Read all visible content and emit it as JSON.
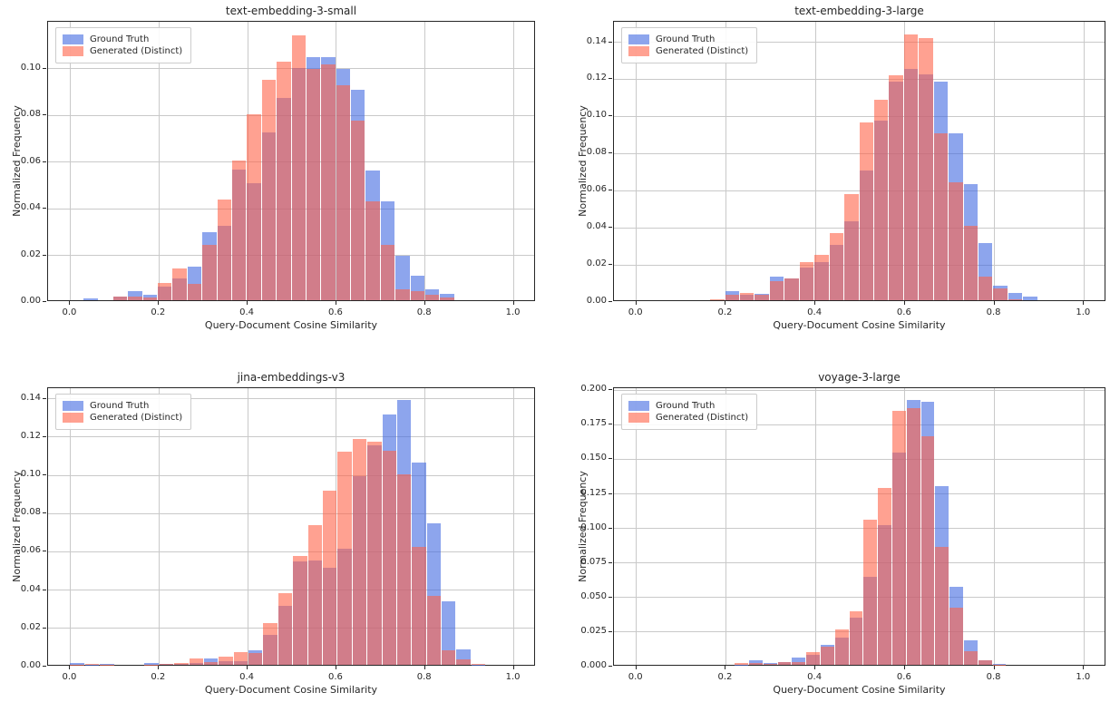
{
  "figure": {
    "background": "#ffffff"
  },
  "colors": {
    "ground_truth": "rgba(65,105,225,0.6)",
    "generated": "rgba(255,99,71,0.6)",
    "grid": "#c9c9c9",
    "spine": "#262626",
    "text": "#262626"
  },
  "legend": {
    "items": [
      {
        "key": "ground_truth",
        "label": "Ground Truth"
      },
      {
        "key": "generated",
        "label": "Generated (Distinct)"
      }
    ]
  },
  "chart_data": [
    {
      "type": "bar",
      "subtype": "overlaid-histogram",
      "title": "text-embedding-3-small",
      "xlabel": "Query-Document Cosine Similarity",
      "ylabel": "Normalized Frequency",
      "xlim": [
        -0.05,
        1.05
      ],
      "ylim": [
        0,
        0.12
      ],
      "grid": true,
      "legend_position": "upper-left",
      "xticks": [
        {
          "v": 0.0,
          "label": "0.0"
        },
        {
          "v": 0.2,
          "label": "0.2"
        },
        {
          "v": 0.4,
          "label": "0.4"
        },
        {
          "v": 0.6,
          "label": "0.6"
        },
        {
          "v": 0.8,
          "label": "0.8"
        },
        {
          "v": 1.0,
          "label": "1.0"
        }
      ],
      "yticks": [
        {
          "v": 0.0,
          "label": "0.00"
        },
        {
          "v": 0.02,
          "label": "0.02"
        },
        {
          "v": 0.04,
          "label": "0.04"
        },
        {
          "v": 0.06,
          "label": "0.06"
        },
        {
          "v": 0.08,
          "label": "0.08"
        },
        {
          "v": 0.1,
          "label": "0.10"
        }
      ],
      "bin_start": 0.03,
      "bin_width": 0.0335,
      "series": [
        {
          "name": "Ground Truth",
          "key": "ground_truth",
          "values": [
            0.0008,
            0,
            0.0016,
            0.0038,
            0.0022,
            0.006,
            0.0095,
            0.0145,
            0.0291,
            0.0318,
            0.056,
            0.05,
            0.072,
            0.0865,
            0.0995,
            0.104,
            0.104,
            0.099,
            0.09,
            0.0554,
            0.0423,
            0.019,
            0.0104,
            0.0048,
            0.0029
          ]
        },
        {
          "name": "Generated (Distinct)",
          "key": "generated",
          "values": [
            0,
            0,
            0.0016,
            0.0016,
            0.0013,
            0.0074,
            0.0135,
            0.0069,
            0.0236,
            0.043,
            0.06,
            0.0795,
            0.0945,
            0.102,
            0.1135,
            0.099,
            0.101,
            0.092,
            0.077,
            0.0425,
            0.0236,
            0.0048,
            0.0039,
            0.0022,
            0.0013
          ]
        }
      ]
    },
    {
      "type": "bar",
      "subtype": "overlaid-histogram",
      "title": "text-embedding-3-large",
      "xlabel": "Query-Document Cosine Similarity",
      "ylabel": "Normalized Frequency",
      "xlim": [
        -0.05,
        1.05
      ],
      "ylim": [
        0,
        0.151
      ],
      "grid": true,
      "legend_position": "upper-left",
      "xticks": [
        {
          "v": 0.0,
          "label": "0.0"
        },
        {
          "v": 0.2,
          "label": "0.2"
        },
        {
          "v": 0.4,
          "label": "0.4"
        },
        {
          "v": 0.6,
          "label": "0.6"
        },
        {
          "v": 0.8,
          "label": "0.8"
        },
        {
          "v": 1.0,
          "label": "1.0"
        }
      ],
      "yticks": [
        {
          "v": 0.0,
          "label": "0.00"
        },
        {
          "v": 0.02,
          "label": "0.02"
        },
        {
          "v": 0.04,
          "label": "0.04"
        },
        {
          "v": 0.06,
          "label": "0.06"
        },
        {
          "v": 0.08,
          "label": "0.08"
        },
        {
          "v": 0.1,
          "label": "0.10"
        },
        {
          "v": 0.12,
          "label": "0.12"
        },
        {
          "v": 0.14,
          "label": "0.14"
        }
      ],
      "bin_start": 0.165,
      "bin_width": 0.0333,
      "series": [
        {
          "name": "Ground Truth",
          "key": "ground_truth",
          "values": [
            0,
            0.0049,
            0.003,
            0.0035,
            0.0125,
            0.0115,
            0.0178,
            0.0205,
            0.03,
            0.0425,
            0.07,
            0.097,
            0.1178,
            0.1245,
            0.1218,
            0.1178,
            0.09,
            0.0625,
            0.031,
            0.0077,
            0.0039,
            0.0018
          ]
        },
        {
          "name": "Generated (Distinct)",
          "key": "generated",
          "values": [
            0.0005,
            0.0028,
            0.0038,
            0.0028,
            0.0105,
            0.0115,
            0.0204,
            0.0242,
            0.036,
            0.057,
            0.0958,
            0.108,
            0.1212,
            0.1432,
            0.1411,
            0.0901,
            0.0635,
            0.04,
            0.0126,
            0.0065,
            0.0005,
            0
          ]
        }
      ]
    },
    {
      "type": "bar",
      "subtype": "overlaid-histogram",
      "title": "jina-embeddings-v3",
      "xlabel": "Query-Document Cosine Similarity",
      "ylabel": "Normalized Frequency",
      "xlim": [
        -0.05,
        1.05
      ],
      "ylim": [
        0,
        0.1455
      ],
      "grid": true,
      "legend_position": "upper-left",
      "xticks": [
        {
          "v": 0.0,
          "label": "0.0"
        },
        {
          "v": 0.2,
          "label": "0.2"
        },
        {
          "v": 0.4,
          "label": "0.4"
        },
        {
          "v": 0.6,
          "label": "0.6"
        },
        {
          "v": 0.8,
          "label": "0.8"
        },
        {
          "v": 1.0,
          "label": "1.0"
        }
      ],
      "yticks": [
        {
          "v": 0.0,
          "label": "0.00"
        },
        {
          "v": 0.02,
          "label": "0.02"
        },
        {
          "v": 0.04,
          "label": "0.04"
        },
        {
          "v": 0.06,
          "label": "0.06"
        },
        {
          "v": 0.08,
          "label": "0.08"
        },
        {
          "v": 0.1,
          "label": "0.10"
        },
        {
          "v": 0.12,
          "label": "0.12"
        },
        {
          "v": 0.14,
          "label": "0.14"
        }
      ],
      "bin_start": 0.0,
      "bin_width": 0.0335,
      "series": [
        {
          "name": "Ground Truth",
          "key": "ground_truth",
          "values": [
            0.0011,
            0.0002,
            0.0005,
            0,
            0,
            0.0011,
            0.0004,
            0.0004,
            0.001,
            0.0031,
            0.002,
            0.002,
            0.0075,
            0.0155,
            0.0307,
            0.0539,
            0.0543,
            0.0509,
            0.0606,
            0.0987,
            0.1146,
            0.1307,
            0.1385,
            0.1057,
            0.074,
            0.033,
            0.008,
            0.0002
          ]
        },
        {
          "name": "Generated (Distinct)",
          "key": "generated",
          "values": [
            0.0002,
            0.0005,
            0.0002,
            0,
            0,
            0.0002,
            0.0004,
            0.0011,
            0.0035,
            0.0015,
            0.0045,
            0.0067,
            0.006,
            0.0216,
            0.0376,
            0.057,
            0.0729,
            0.091,
            0.1113,
            0.1181,
            0.1165,
            0.112,
            0.0994,
            0.0615,
            0.036,
            0.0075,
            0.003,
            0.0005
          ]
        }
      ]
    },
    {
      "type": "bar",
      "subtype": "overlaid-histogram",
      "title": "voyage-3-large",
      "xlabel": "Query-Document Cosine Similarity",
      "ylabel": "Normalized Frequency",
      "xlim": [
        -0.05,
        1.05
      ],
      "ylim": [
        0,
        0.2015
      ],
      "grid": true,
      "legend_position": "upper-left",
      "xticks": [
        {
          "v": 0.0,
          "label": "0.0"
        },
        {
          "v": 0.2,
          "label": "0.2"
        },
        {
          "v": 0.4,
          "label": "0.4"
        },
        {
          "v": 0.6,
          "label": "0.6"
        },
        {
          "v": 0.8,
          "label": "0.8"
        },
        {
          "v": 1.0,
          "label": "1.0"
        }
      ],
      "yticks": [
        {
          "v": 0.0,
          "label": "0.000"
        },
        {
          "v": 0.025,
          "label": "0.025"
        },
        {
          "v": 0.05,
          "label": "0.050"
        },
        {
          "v": 0.075,
          "label": "0.075"
        },
        {
          "v": 0.1,
          "label": "0.100"
        },
        {
          "v": 0.125,
          "label": "0.125"
        },
        {
          "v": 0.15,
          "label": "0.150"
        },
        {
          "v": 0.175,
          "label": "0.175"
        },
        {
          "v": 0.2,
          "label": "0.200"
        }
      ],
      "bin_start": 0.22,
      "bin_width": 0.032,
      "series": [
        {
          "name": "Ground Truth",
          "key": "ground_truth",
          "values": [
            0.0002,
            0.003,
            0.0015,
            0.002,
            0.0055,
            0.007,
            0.0145,
            0.02,
            0.034,
            0.0635,
            0.1011,
            0.1536,
            0.1919,
            0.1901,
            0.1291,
            0.0565,
            0.018,
            0.003,
            0.0005
          ]
        },
        {
          "name": "Generated (Distinct)",
          "key": "generated",
          "values": [
            0.001,
            0.001,
            0.0005,
            0.002,
            0.002,
            0.009,
            0.013,
            0.0255,
            0.039,
            0.1048,
            0.1278,
            0.1836,
            0.1858,
            0.1656,
            0.0855,
            0.0415,
            0.01,
            0.003,
            0.0002
          ]
        }
      ]
    }
  ]
}
